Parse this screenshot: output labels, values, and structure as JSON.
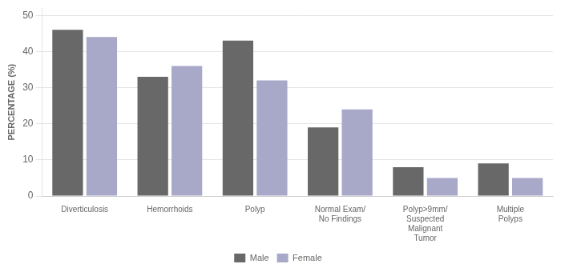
{
  "chart_data": {
    "type": "bar",
    "categories": [
      "Diverticulosis",
      "Hemorrhoids",
      "Polyp",
      "Normal Exam/\nNo Findings",
      "Polyp>9mm/\nSuspected\nMalignant\nTumor",
      "Multiple\nPolyps"
    ],
    "series": [
      {
        "name": "Male",
        "color": "#686868",
        "values": [
          46,
          33,
          43,
          19,
          8,
          9
        ]
      },
      {
        "name": "Female",
        "color": "#a8a8c8",
        "values": [
          44,
          36,
          32,
          24,
          5,
          5
        ]
      }
    ],
    "ylabel": "PERCENTAGE (%)",
    "ylim": [
      0,
      52
    ],
    "yticks": [
      0,
      10,
      20,
      30,
      40,
      50
    ],
    "grid": true,
    "legend": "bottom"
  }
}
